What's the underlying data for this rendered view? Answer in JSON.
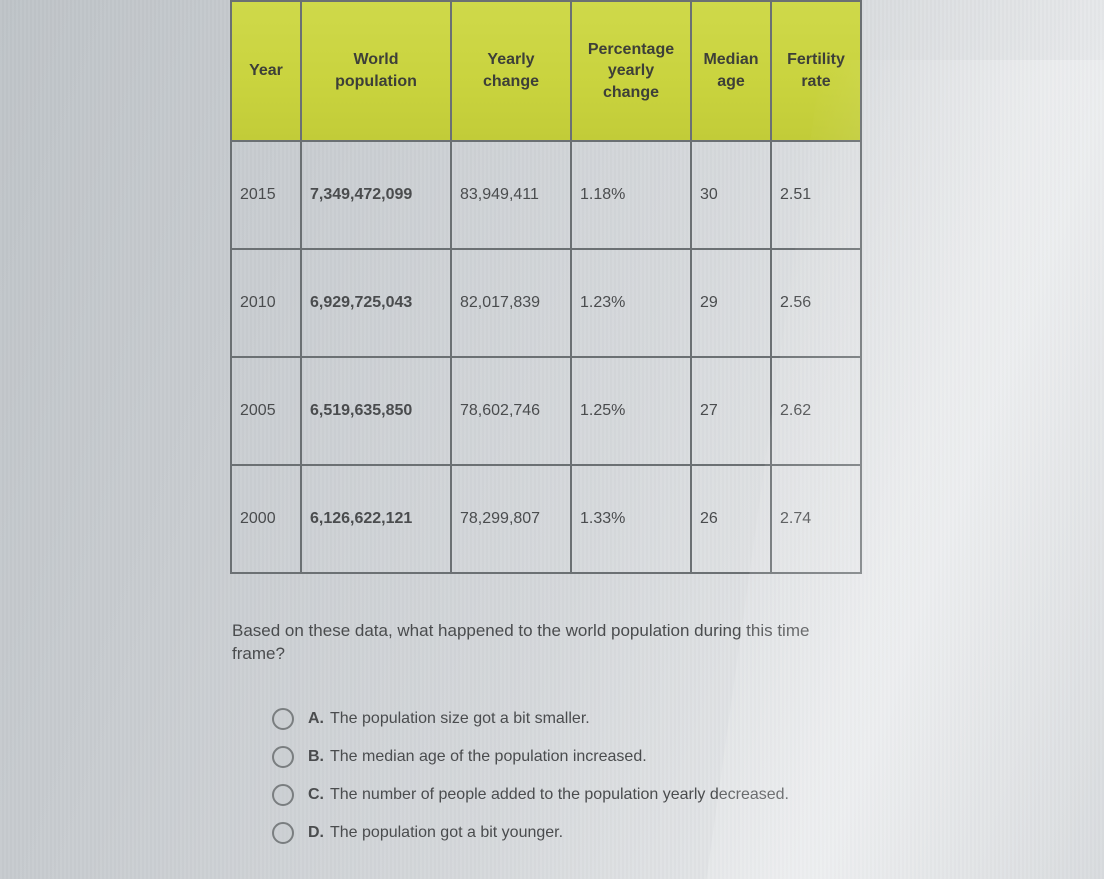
{
  "table": {
    "columns": [
      {
        "label": "Year"
      },
      {
        "label": "World population"
      },
      {
        "label": "Yearly change"
      },
      {
        "label": "Percentage yearly change"
      },
      {
        "label": "Median age"
      },
      {
        "label": "Fertility rate"
      }
    ],
    "header_bg": "#c9d33e",
    "border_color": "#6b7073",
    "rows": [
      {
        "year": "2015",
        "pop": "7,349,472,099",
        "yc": "83,949,411",
        "pct": "1.18%",
        "age": "30",
        "fert": "2.51"
      },
      {
        "year": "2010",
        "pop": "6,929,725,043",
        "yc": "82,017,839",
        "pct": "1.23%",
        "age": "29",
        "fert": "2.56"
      },
      {
        "year": "2005",
        "pop": "6,519,635,850",
        "yc": "78,602,746",
        "pct": "1.25%",
        "age": "27",
        "fert": "2.62"
      },
      {
        "year": "2000",
        "pop": "6,126,622,121",
        "yc": "78,299,807",
        "pct": "1.33%",
        "age": "26",
        "fert": "2.74"
      }
    ]
  },
  "question": {
    "line1": "Based on these data, what happened to the world population during this time",
    "line2": "frame?"
  },
  "choices": {
    "a": {
      "letter": "A.",
      "text": "The population size got a bit smaller."
    },
    "b": {
      "letter": "B.",
      "text": "The median age of the population increased."
    },
    "c": {
      "letter": "C.",
      "text": "The number of people added to the population yearly decreased."
    },
    "d": {
      "letter": "D.",
      "text": "The population got a bit younger."
    }
  }
}
